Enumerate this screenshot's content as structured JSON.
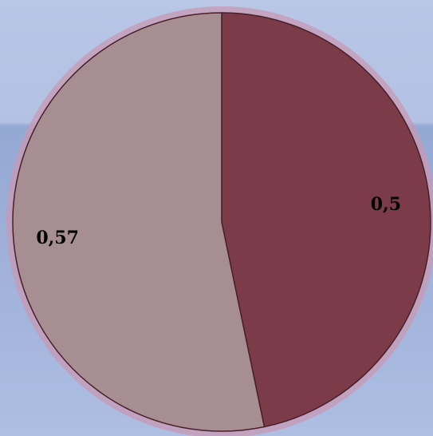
{
  "chart_data": {
    "type": "pie",
    "slices": [
      {
        "label": "0,5",
        "value": 0.5,
        "color": "#7b3b49"
      },
      {
        "label": "0,57",
        "value": 0.57,
        "color": "#a68e92"
      }
    ],
    "start_angle_deg": 0,
    "direction": "clockwise",
    "legend": "none"
  }
}
